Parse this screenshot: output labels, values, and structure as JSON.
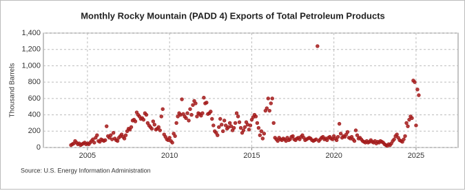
{
  "chart_data": {
    "type": "scatter",
    "title": "Monthly Rocky Mountain (PADD 4) Exports of Total Petroleum Products",
    "y_label": "Thousand Barrels",
    "source": "Source: U.S. Energy Information Administration",
    "color": "#a31a1a",
    "grid": true,
    "xlim": [
      2002.32,
      2027.56
    ],
    "xticks": [
      2005,
      2010,
      2015,
      2020,
      2025
    ],
    "ylim": [
      0,
      1400
    ],
    "yticks": [
      0,
      200,
      400,
      600,
      800,
      {
        "value": 1000,
        "label": "1,000"
      },
      {
        "value": 1200,
        "label": "1,200"
      },
      {
        "value": 1400,
        "label": "1,400"
      }
    ],
    "x": [
      2004,
      2004.083,
      2004.167,
      2004.25,
      2004.333,
      2004.417,
      2004.5,
      2004.583,
      2004.667,
      2004.75,
      2004.833,
      2004.917,
      2005,
      2005.083,
      2005.167,
      2005.25,
      2005.333,
      2005.417,
      2005.5,
      2005.583,
      2005.667,
      2005.75,
      2005.833,
      2005.917,
      2006,
      2006.083,
      2006.167,
      2006.25,
      2006.333,
      2006.417,
      2006.5,
      2006.583,
      2006.667,
      2006.75,
      2006.833,
      2006.917,
      2007,
      2007.083,
      2007.167,
      2007.25,
      2007.333,
      2007.417,
      2007.5,
      2007.583,
      2007.667,
      2007.75,
      2007.833,
      2007.917,
      2008,
      2008.083,
      2008.167,
      2008.25,
      2008.333,
      2008.417,
      2008.5,
      2008.583,
      2008.667,
      2008.75,
      2008.833,
      2008.917,
      2009,
      2009.083,
      2009.167,
      2009.25,
      2009.333,
      2009.417,
      2009.5,
      2009.583,
      2009.667,
      2009.75,
      2009.833,
      2009.917,
      2010,
      2010.083,
      2010.167,
      2010.25,
      2010.333,
      2010.417,
      2010.5,
      2010.583,
      2010.667,
      2010.75,
      2010.833,
      2010.917,
      2011,
      2011.083,
      2011.167,
      2011.25,
      2011.333,
      2011.417,
      2011.5,
      2011.583,
      2011.667,
      2011.75,
      2011.833,
      2011.917,
      2012,
      2012.083,
      2012.167,
      2012.25,
      2012.333,
      2012.417,
      2012.5,
      2012.583,
      2012.667,
      2012.75,
      2012.833,
      2012.917,
      2013,
      2013.083,
      2013.167,
      2013.25,
      2013.333,
      2013.417,
      2013.5,
      2013.583,
      2013.667,
      2013.75,
      2013.833,
      2013.917,
      2014,
      2014.083,
      2014.167,
      2014.25,
      2014.333,
      2014.417,
      2014.5,
      2014.583,
      2014.667,
      2014.75,
      2014.833,
      2014.917,
      2015,
      2015.083,
      2015.167,
      2015.25,
      2015.333,
      2015.417,
      2015.5,
      2015.583,
      2015.667,
      2015.75,
      2015.833,
      2015.917,
      2016,
      2016.083,
      2016.167,
      2016.25,
      2016.333,
      2016.417,
      2016.5,
      2016.583,
      2016.667,
      2016.75,
      2016.833,
      2016.917,
      2017,
      2017.083,
      2017.167,
      2017.25,
      2017.333,
      2017.417,
      2017.5,
      2017.583,
      2017.667,
      2017.75,
      2017.833,
      2017.917,
      2018,
      2018.083,
      2018.167,
      2018.25,
      2018.333,
      2018.417,
      2018.5,
      2018.583,
      2018.667,
      2018.75,
      2018.833,
      2018.917,
      2019,
      2019.083,
      2019.167,
      2019.25,
      2019.333,
      2019.417,
      2019.5,
      2019.583,
      2019.667,
      2019.75,
      2019.833,
      2019.917,
      2020,
      2020.083,
      2020.167,
      2020.25,
      2020.333,
      2020.417,
      2020.5,
      2020.583,
      2020.667,
      2020.75,
      2020.833,
      2020.917,
      2021,
      2021.083,
      2021.167,
      2021.25,
      2021.333,
      2021.417,
      2021.5,
      2021.583,
      2021.667,
      2021.75,
      2021.833,
      2021.917,
      2022,
      2022.083,
      2022.167,
      2022.25,
      2022.333,
      2022.417,
      2022.5,
      2022.583,
      2022.667,
      2022.75,
      2022.833,
      2022.917,
      2023,
      2023.083,
      2023.167,
      2023.25,
      2023.333,
      2023.417,
      2023.5,
      2023.583,
      2023.667,
      2023.75,
      2023.833,
      2023.917,
      2024,
      2024.083,
      2024.167,
      2024.25,
      2024.333,
      2024.417,
      2024.5,
      2024.583,
      2024.667,
      2024.75,
      2024.833,
      2024.917,
      2025,
      2025.083,
      2025.167
    ],
    "values": [
      30,
      40,
      50,
      80,
      60,
      40,
      50,
      30,
      40,
      50,
      60,
      40,
      50,
      40,
      60,
      80,
      100,
      60,
      120,
      150,
      80,
      70,
      100,
      90,
      80,
      90,
      260,
      140,
      120,
      150,
      100,
      180,
      110,
      90,
      80,
      120,
      140,
      160,
      130,
      110,
      150,
      200,
      230,
      220,
      250,
      330,
      340,
      320,
      430,
      400,
      380,
      350,
      360,
      340,
      420,
      400,
      300,
      270,
      250,
      230,
      320,
      280,
      220,
      230,
      250,
      210,
      380,
      470,
      160,
      130,
      100,
      90,
      120,
      80,
      60,
      170,
      140,
      300,
      380,
      420,
      400,
      590,
      410,
      380,
      360,
      420,
      330,
      470,
      400,
      520,
      570,
      540,
      380,
      420,
      410,
      390,
      420,
      610,
      540,
      550,
      410,
      420,
      440,
      350,
      270,
      200,
      180,
      150,
      250,
      350,
      280,
      200,
      330,
      270,
      230,
      250,
      300,
      260,
      210,
      240,
      300,
      420,
      380,
      310,
      240,
      180,
      210,
      250,
      310,
      280,
      220,
      270,
      340,
      370,
      400,
      380,
      300,
      240,
      150,
      200,
      110,
      170,
      450,
      480,
      600,
      450,
      540,
      600,
      300,
      120,
      100,
      80,
      120,
      100,
      90,
      110,
      100,
      80,
      120,
      90,
      100,
      130,
      140,
      100,
      90,
      110,
      120,
      100,
      130,
      150,
      120,
      90,
      100,
      110,
      120,
      110,
      90,
      80,
      90,
      100,
      1240,
      80,
      100,
      120,
      130,
      100,
      110,
      90,
      120,
      130,
      110,
      100,
      140,
      110,
      90,
      130,
      290,
      170,
      120,
      140,
      130,
      160,
      190,
      120,
      110,
      130,
      100,
      80,
      210,
      150,
      110,
      120,
      100,
      80,
      70,
      60,
      80,
      60,
      70,
      90,
      70,
      60,
      80,
      50,
      70,
      60,
      80,
      70,
      60,
      40,
      30,
      20,
      40,
      30,
      50,
      80,
      100,
      140,
      160,
      120,
      90,
      80,
      70,
      100,
      140,
      300,
      260,
      340,
      380,
      360,
      820,
      800,
      270,
      710,
      640
    ]
  }
}
